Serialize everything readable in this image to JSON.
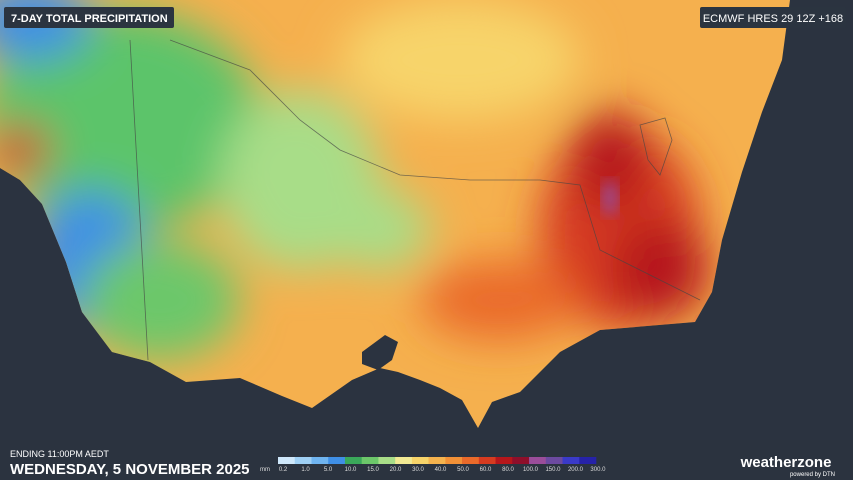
{
  "header": {
    "title": "7-DAY TOTAL PRECIPITATION",
    "model": "ECMWF HRES 29 12Z +168"
  },
  "footer": {
    "ending": "ENDING 11:00PM AEDT",
    "date": "WEDNESDAY, 5 NOVEMBER 2025",
    "brand": "weatherzone",
    "brand_sub": "powered by DTN"
  },
  "legend": {
    "unit": "mm",
    "colors": [
      "#cfe8fb",
      "#9fd0f5",
      "#6fb4f0",
      "#3f8fe6",
      "#3aa85a",
      "#6cc76a",
      "#a8dd88",
      "#f2ea94",
      "#f7d46a",
      "#f5b34e",
      "#f29137",
      "#ea6a2a",
      "#d63b20",
      "#b5161b",
      "#8e0f2a",
      "#9a4d9a",
      "#6c4aa0",
      "#3a3ac8",
      "#2622a8"
    ],
    "labels": [
      "0.2",
      "1.0",
      "5.0",
      "10.0",
      "15.0",
      "20.0",
      "30.0",
      "40.0",
      "50.0",
      "60.0",
      "80.0",
      "100.0",
      "150.0",
      "200.0",
      "300.0"
    ]
  }
}
